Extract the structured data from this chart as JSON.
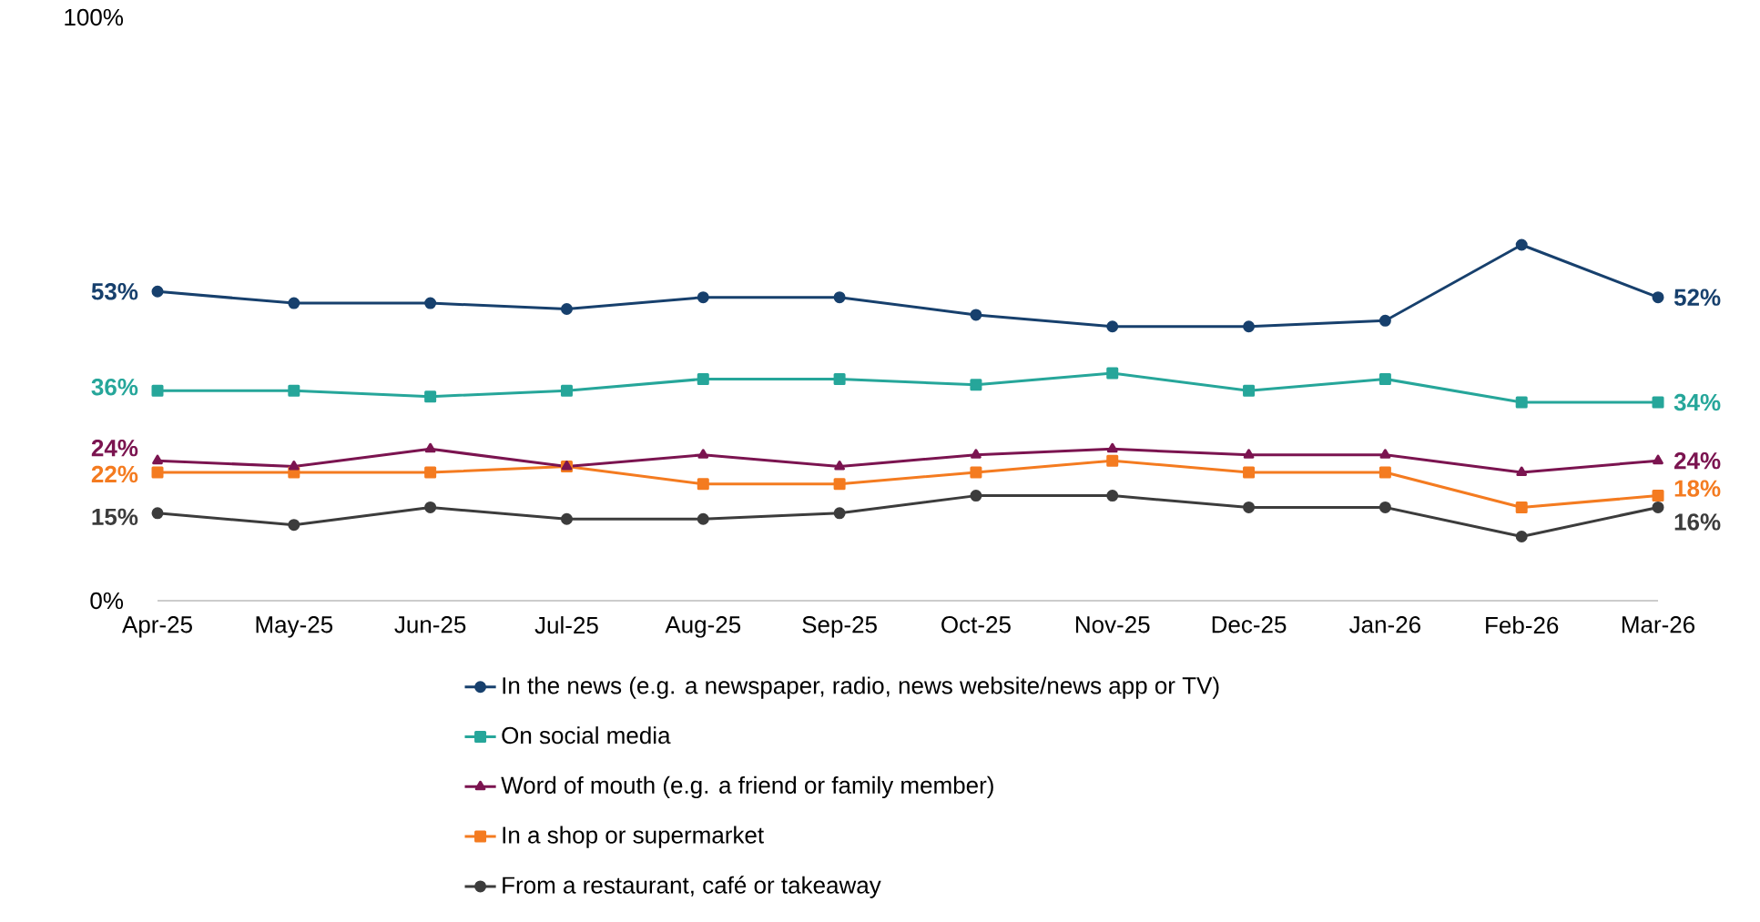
{
  "chart_data": {
    "type": "line",
    "categories": [
      "Apr-25",
      "May-25",
      "Jun-25",
      "Jul-25",
      "Aug-25",
      "Sep-25",
      "Oct-25",
      "Nov-25",
      "Dec-25",
      "Jan-26",
      "Feb-26",
      "Mar-26"
    ],
    "series": [
      {
        "name": "In the news (e.g. a newspaper, radio, news website/news app or TV)",
        "color": "#17406d",
        "marker": "circle",
        "values": [
          53,
          51,
          51,
          50,
          52,
          52,
          49,
          47,
          47,
          48,
          61,
          52
        ],
        "value_labels": [
          "53%",
          null,
          null,
          null,
          null,
          null,
          null,
          null,
          null,
          null,
          null,
          "52%"
        ]
      },
      {
        "name": "On social media",
        "color": "#26a69a",
        "marker": "square",
        "values": [
          36,
          36,
          35,
          36,
          38,
          38,
          37,
          39,
          36,
          38,
          34,
          34
        ],
        "value_labels": [
          "36%",
          null,
          null,
          null,
          null,
          null,
          null,
          null,
          null,
          null,
          null,
          "34%"
        ]
      },
      {
        "name": "Word of mouth (e.g. a friend or family member)",
        "color": "#7b1450",
        "marker": "triangle",
        "values": [
          24,
          23,
          26,
          23,
          25,
          23,
          25,
          26,
          25,
          25,
          22,
          24
        ],
        "value_labels": [
          "24%",
          null,
          null,
          null,
          null,
          null,
          null,
          null,
          null,
          null,
          null,
          "24%"
        ]
      },
      {
        "name": "In a shop or supermarket",
        "color": "#f47b20",
        "marker": "square",
        "values": [
          22,
          22,
          22,
          23,
          20,
          20,
          22,
          24,
          22,
          22,
          16,
          18
        ],
        "value_labels": [
          "22%",
          null,
          null,
          null,
          null,
          null,
          null,
          null,
          null,
          null,
          null,
          "18%"
        ]
      },
      {
        "name": "From a restaurant, café or takeaway",
        "color": "#3c3c3c",
        "marker": "circle",
        "values": [
          15,
          13,
          16,
          14,
          14,
          15,
          18,
          18,
          16,
          16,
          11,
          16
        ],
        "value_labels": [
          "15%",
          null,
          null,
          null,
          null,
          null,
          null,
          null,
          null,
          null,
          null,
          "16%"
        ]
      }
    ],
    "ylim": [
      0,
      100
    ],
    "yticks": [
      {
        "value": 0,
        "label": "0%"
      },
      {
        "value": 100,
        "label": "100%"
      }
    ],
    "legend": "bottom",
    "line_style": "solid"
  }
}
